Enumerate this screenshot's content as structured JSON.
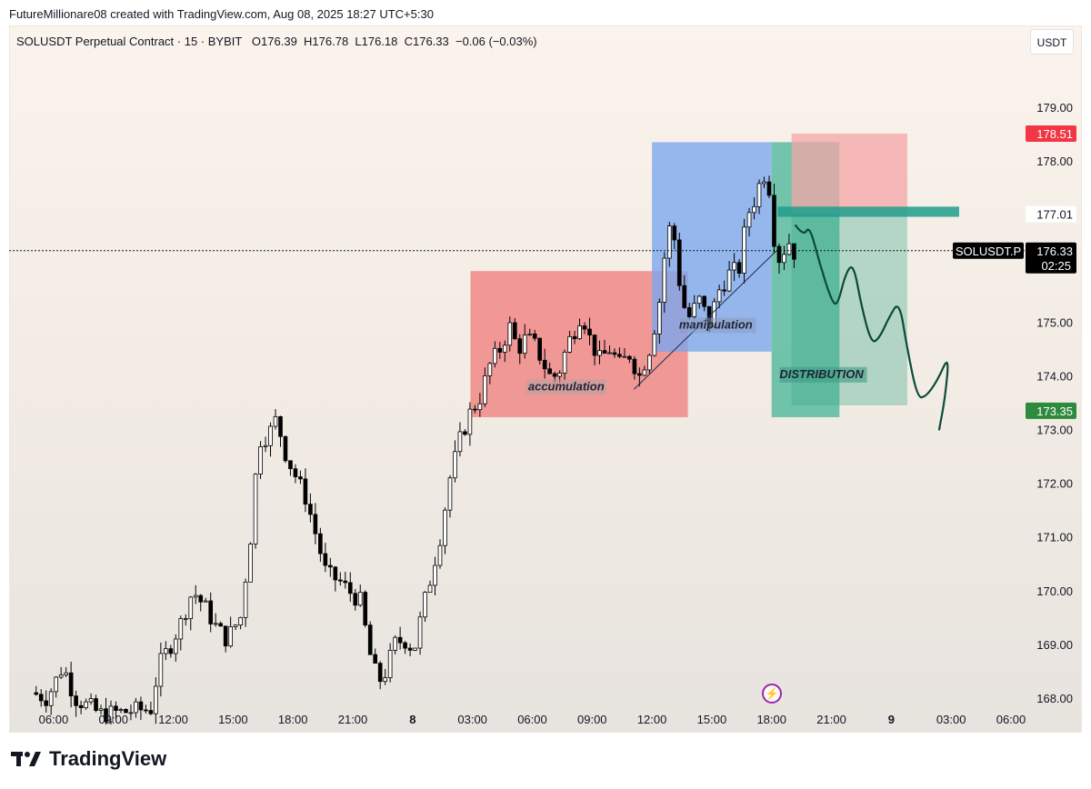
{
  "caption": "FutureMillionare08 created with TradingView.com, Aug 08, 2025 18:27 UTC+5:30",
  "header": {
    "symbol": "SOLUSDT Perpetual Contract · 15 · BYBIT",
    "ohlc": "O176.39  H176.78  L176.18  C176.33  −0.06 (−0.03%)"
  },
  "currency_button": "USDT",
  "brand": "TradingView",
  "icons": {
    "bolt": "lightning-bolt-icon",
    "logo": "tradingview-logo-icon"
  },
  "colors": {
    "up_body": "#ffffff",
    "down_body": "#000000",
    "wick": "#000000",
    "accumulation_box": "#f08080",
    "manipulation_box": "#7aa7ee",
    "distribution_box": "#4cb79a",
    "stop_box": "#f4a6a6",
    "stop_label": "#f23645",
    "target_label": "#2e8b3e",
    "last_price_label": "#000000"
  },
  "chart_data": {
    "type": "candlestick",
    "symbol": "SOLUSDT.P",
    "interval": "15",
    "exchange": "BYBIT",
    "ylim": [
      167.9,
      180.4
    ],
    "y_ticks": [
      168.0,
      169.0,
      170.0,
      171.0,
      172.0,
      173.0,
      174.0,
      175.0,
      176.0,
      177.0,
      178.0,
      179.0
    ],
    "y_tick_labels": [
      "168.00",
      "169.00",
      "170.00",
      "171.00",
      "172.00",
      "173.00",
      "174.00",
      "175.00",
      "176.00",
      "177.00",
      "178.00",
      "179.00"
    ],
    "x_start": "Aug 7, 05:00",
    "x_end": "Aug 9, 06:00",
    "x_ticks": [
      {
        "time": 1.0,
        "label": "06:00"
      },
      {
        "time": 4.0,
        "label": "09:00"
      },
      {
        "time": 7.0,
        "label": "12:00"
      },
      {
        "time": 10.0,
        "label": "15:00"
      },
      {
        "time": 13.0,
        "label": "18:00"
      },
      {
        "time": 16.0,
        "label": "21:00"
      },
      {
        "time": 19.0,
        "label": "8"
      },
      {
        "time": 22.0,
        "label": "03:00"
      },
      {
        "time": 25.0,
        "label": "06:00"
      },
      {
        "time": 28.0,
        "label": "09:00"
      },
      {
        "time": 31.0,
        "label": "12:00"
      },
      {
        "time": 34.0,
        "label": "15:00"
      },
      {
        "time": 37.0,
        "label": "18:00"
      },
      {
        "time": 40.0,
        "label": "21:00"
      },
      {
        "time": 43.0,
        "label": "9"
      },
      {
        "time": 46.0,
        "label": "03:00"
      },
      {
        "time": 49.0,
        "label": "06:00"
      }
    ],
    "candle_interval_hours": 0.25,
    "first_candle_time": 0.0,
    "close_path": [
      [
        0.0,
        168.1
      ],
      [
        0.8,
        168.0
      ],
      [
        1.6,
        168.6
      ],
      [
        2.2,
        168.0
      ],
      [
        3.5,
        167.7
      ],
      [
        6.0,
        167.8
      ],
      [
        6.4,
        168.6
      ],
      [
        7.0,
        169.0
      ],
      [
        7.5,
        169.4
      ],
      [
        8.1,
        170.0
      ],
      [
        8.7,
        169.7
      ],
      [
        9.3,
        169.3
      ],
      [
        9.8,
        169.1
      ],
      [
        10.5,
        169.5
      ],
      [
        11.0,
        171.0
      ],
      [
        11.4,
        172.8
      ],
      [
        11.9,
        172.9
      ],
      [
        12.3,
        173.2
      ],
      [
        12.8,
        172.5
      ],
      [
        13.3,
        172.1
      ],
      [
        13.8,
        171.7
      ],
      [
        14.3,
        171.0
      ],
      [
        14.8,
        170.3
      ],
      [
        15.4,
        170.2
      ],
      [
        15.9,
        170.0
      ],
      [
        16.5,
        169.8
      ],
      [
        17.0,
        168.8
      ],
      [
        17.4,
        168.3
      ],
      [
        17.8,
        168.5
      ],
      [
        18.2,
        169.0
      ],
      [
        18.7,
        169.1
      ],
      [
        19.2,
        168.9
      ],
      [
        19.6,
        169.6
      ],
      [
        20.0,
        170.2
      ],
      [
        20.5,
        171.0
      ],
      [
        21.0,
        172.1
      ],
      [
        21.5,
        172.8
      ],
      [
        22.0,
        173.3
      ],
      [
        22.5,
        173.6
      ],
      [
        23.0,
        174.2
      ],
      [
        23.5,
        174.5
      ],
      [
        24.0,
        174.9
      ],
      [
        24.4,
        174.5
      ],
      [
        24.8,
        174.7
      ],
      [
        25.2,
        174.6
      ],
      [
        25.6,
        174.3
      ],
      [
        26.0,
        174.0
      ],
      [
        26.4,
        174.0
      ],
      [
        26.9,
        174.6
      ],
      [
        27.3,
        174.9
      ],
      [
        27.6,
        175.2
      ],
      [
        28.0,
        174.7
      ],
      [
        28.5,
        174.3
      ],
      [
        29.0,
        174.5
      ],
      [
        29.5,
        174.2
      ],
      [
        30.0,
        174.4
      ],
      [
        30.5,
        174.0
      ],
      [
        31.0,
        174.5
      ],
      [
        31.3,
        175.0
      ],
      [
        31.6,
        175.6
      ],
      [
        31.9,
        176.8
      ],
      [
        32.3,
        176.5
      ],
      [
        32.6,
        175.4
      ],
      [
        33.0,
        175.1
      ],
      [
        33.5,
        175.4
      ],
      [
        34.0,
        175.0
      ],
      [
        34.5,
        175.6
      ],
      [
        35.0,
        175.9
      ],
      [
        35.5,
        176.0
      ],
      [
        35.9,
        177.0
      ],
      [
        36.3,
        177.3
      ],
      [
        36.7,
        177.8
      ],
      [
        37.0,
        177.5
      ],
      [
        37.3,
        176.4
      ],
      [
        37.6,
        176.1
      ],
      [
        37.9,
        176.6
      ],
      [
        38.2,
        176.3
      ]
    ],
    "last_price": 176.33,
    "last_price_label": "176.33",
    "countdown": "02:25",
    "symbol_label": "SOLUSDT.P",
    "stop_level": 178.51,
    "stop_label": "178.51",
    "target_level": 173.35,
    "target_label": "173.35",
    "entry_level": 177.01,
    "entry_label": "177.01",
    "zones": [
      {
        "name": "accumulation",
        "label": "accumulation",
        "t_start": 21.9,
        "t_end": 32.8,
        "low": 173.23,
        "high": 175.95,
        "color": "accumulation_box"
      },
      {
        "name": "manipulation",
        "label": "manipulation",
        "t_start": 31.0,
        "t_end": 37.0,
        "low": 174.45,
        "high": 178.35,
        "color": "manipulation_box"
      },
      {
        "name": "distribution",
        "label": "DISTRIBUTION",
        "t_start": 37.0,
        "t_end": 40.4,
        "low": 173.23,
        "high": 178.35,
        "color": "distribution_box"
      }
    ],
    "stop_box": {
      "t_start": 38.0,
      "t_end": 43.8,
      "low": 177.01,
      "high": 178.51
    },
    "entry_band": {
      "t_start": 37.3,
      "t_end": 46.4,
      "low": 176.96,
      "high": 177.15
    },
    "trendline": [
      [
        30.1,
        173.75
      ],
      [
        37.3,
        176.35
      ]
    ],
    "projection": [
      [
        38.2,
        176.8
      ],
      [
        38.6,
        176.6
      ],
      [
        38.9,
        176.8
      ],
      [
        39.4,
        176.1
      ],
      [
        40.0,
        175.4
      ],
      [
        40.3,
        175.3
      ],
      [
        40.7,
        175.9
      ],
      [
        41.1,
        176.1
      ],
      [
        41.5,
        175.3
      ],
      [
        42.0,
        174.6
      ],
      [
        42.4,
        174.7
      ],
      [
        42.9,
        175.1
      ],
      [
        43.4,
        175.4
      ],
      [
        43.8,
        174.5
      ],
      [
        44.3,
        173.6
      ],
      [
        44.7,
        173.6
      ],
      [
        45.3,
        173.9
      ],
      [
        45.9,
        174.4
      ],
      [
        45.7,
        173.6
      ],
      [
        45.4,
        173.0
      ]
    ]
  }
}
